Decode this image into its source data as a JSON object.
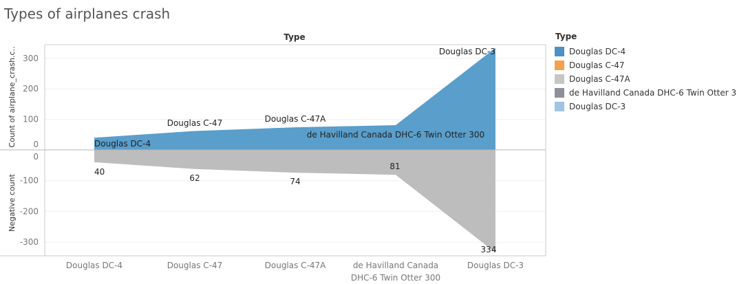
{
  "title": "Types of airplanes crash",
  "legend": {
    "title": "Type",
    "items": [
      {
        "label": "Douglas DC-4",
        "color": "#4e8fc4"
      },
      {
        "label": "Douglas C-47",
        "color": "#f5a04c"
      },
      {
        "label": "Douglas C-47A",
        "color": "#c6c6c6"
      },
      {
        "label": "de Havilland Canada DHC-6 Twin Otter 300",
        "color": "#8c9199"
      },
      {
        "label": "Douglas DC-3",
        "color": "#9fc4e4"
      }
    ]
  },
  "chart_data": {
    "type": "area",
    "column_header": "Type",
    "categories": [
      "Douglas DC-4",
      "Douglas C-47",
      "Douglas C-47A",
      "de Havilland Canada DHC-6 Twin Otter 300",
      "Douglas DC-3"
    ],
    "x_tick_labels": [
      [
        "Douglas DC-4"
      ],
      [
        "Douglas C-47"
      ],
      [
        "Douglas C-47A"
      ],
      [
        "de Havilland Canada",
        "DHC-6 Twin Otter 300"
      ],
      [
        "Douglas DC-3"
      ]
    ],
    "top_panel": {
      "ylabel": "Count of airplane_crash.c..",
      "ylim": [
        0,
        340
      ],
      "yticks": [
        0,
        100,
        200,
        300
      ],
      "values": [
        40,
        62,
        74,
        81,
        334
      ],
      "fill_color": "#5a9ecb",
      "labels": [
        "Douglas DC-4",
        "Douglas C-47",
        "Douglas C-47A",
        "de Havilland Canada DHC-6 Twin Otter 300",
        "Douglas DC-3"
      ]
    },
    "bottom_panel": {
      "ylabel": "Negative count",
      "ylim": [
        -340,
        0
      ],
      "yticks": [
        0,
        -100,
        -200,
        -300
      ],
      "values": [
        -40,
        -62,
        -74,
        -81,
        -334
      ],
      "fill_color": "#bdbdbd",
      "labels": [
        "40",
        "62",
        "74",
        "81",
        "334"
      ]
    }
  }
}
